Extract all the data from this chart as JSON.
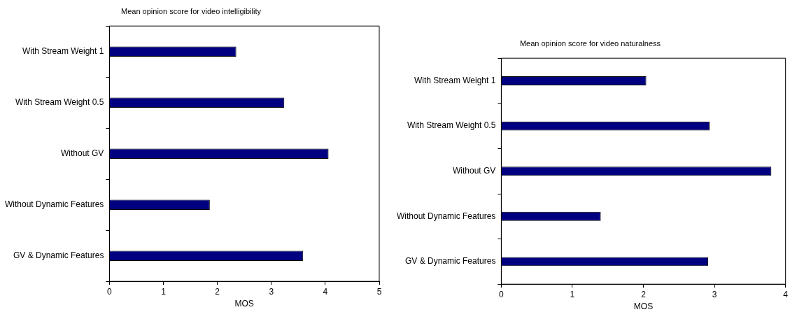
{
  "chart_data": [
    {
      "type": "bar",
      "orientation": "horizontal",
      "title": "Mean opinion score for video intelligibility",
      "xlabel": "MOS",
      "categories": [
        "With Stream Weight 1",
        "With Stream Weight 0.5",
        "Without GV",
        "Without Dynamic Features",
        "GV & Dynamic Features"
      ],
      "values": [
        2.35,
        3.24,
        4.06,
        1.86,
        3.59
      ],
      "color": "#000080",
      "xlim": [
        0,
        5
      ],
      "xticks": [
        0,
        1,
        2,
        3,
        4,
        5
      ],
      "legend": false
    },
    {
      "type": "bar",
      "orientation": "horizontal",
      "title": "Mean opinion score for video naturalness",
      "xlabel": "MOS",
      "categories": [
        "With Stream Weight 1",
        "With Stream Weight 0.5",
        "Without GV",
        "Without Dynamic Features",
        "GV & Dynamic Features"
      ],
      "values": [
        2.04,
        2.93,
        3.8,
        1.4,
        2.91
      ],
      "color": "#000080",
      "xlim": [
        0,
        4
      ],
      "xticks": [
        0,
        1,
        2,
        3,
        4
      ],
      "legend": false
    }
  ]
}
